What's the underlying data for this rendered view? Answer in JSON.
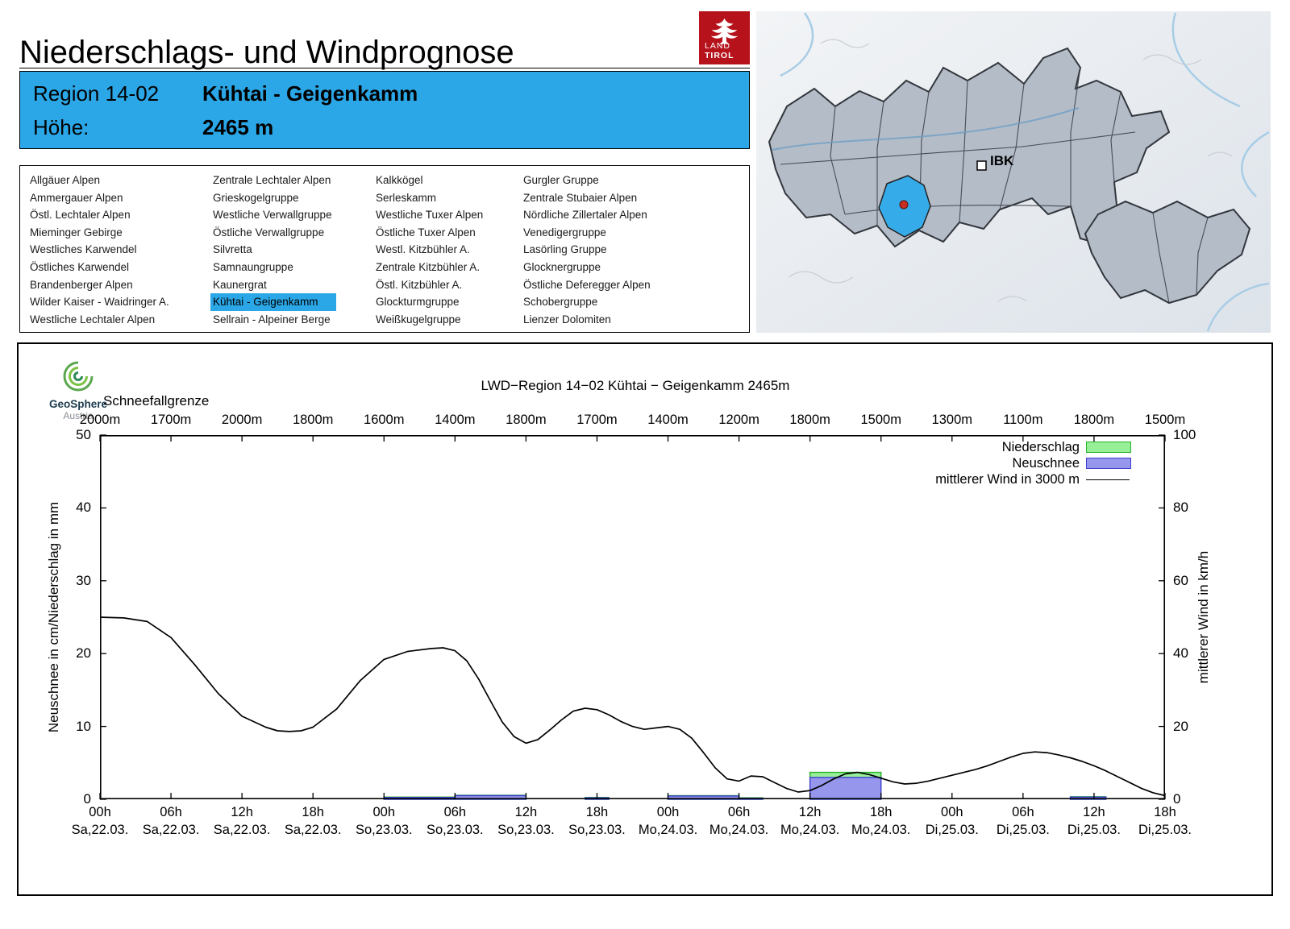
{
  "header": {
    "title": "Niederschlags- und Windprognose",
    "logo": {
      "line1": "LAND",
      "line2": "TIROL"
    }
  },
  "region_info": {
    "region_label": "Region 14-02",
    "region_name": "Kühtai - Geigenkamm",
    "altitude_label": "Höhe:",
    "altitude_value": "2465 m"
  },
  "colors": {
    "accent_blue": "#2BA7E7",
    "tirol_red": "#B5121B",
    "precip_fill": "#97F097",
    "precip_stroke": "#27B027",
    "snow_fill": "#9696EC",
    "snow_stroke": "#4040D0",
    "wind_line": "#000000",
    "map_region_fill": "#B4BCC8",
    "map_highlight": "#35ACE9",
    "map_marker_red": "#C62F22"
  },
  "region_list": {
    "columns": [
      [
        "Allgäuer Alpen",
        "Ammergauer Alpen",
        "Östl. Lechtaler Alpen",
        "Mieminger Gebirge",
        "Westliches Karwendel",
        "Östliches Karwendel",
        "Brandenberger Alpen",
        "Wilder Kaiser - Waidringer A.",
        "Westliche Lechtaler Alpen"
      ],
      [
        "Zentrale Lechtaler Alpen",
        "Grieskogelgruppe",
        "Westliche Verwallgruppe",
        "Östliche Verwallgruppe",
        "Silvretta",
        "Samnaungruppe",
        "Kaunergrat",
        "Kühtai - Geigenkamm",
        "Sellrain - Alpeiner Berge"
      ],
      [
        "Kalkkögel",
        "Serleskamm",
        "Westliche Tuxer Alpen",
        "Östliche Tuxer Alpen",
        "Westl. Kitzbühler A.",
        "Zentrale Kitzbühler A.",
        "Östl. Kitzbühler A.",
        "Glockturmgruppe",
        "Weißkugelgruppe"
      ],
      [
        "Gurgler Gruppe",
        "Zentrale Stubaier Alpen",
        "Nördliche Zillertaler Alpen",
        "Venedigergruppe",
        "Lasörling Gruppe",
        "Glocknergruppe",
        "Östliche Deferegger Alpen",
        "Schobergruppe",
        "Lienzer Dolomiten"
      ]
    ],
    "selected": {
      "col": 1,
      "row": 7
    }
  },
  "map": {
    "city_label": "IBK"
  },
  "geosphere": {
    "name": "GeoSphere",
    "sub": "Austria"
  },
  "chart_data": {
    "type": "bar+line",
    "title": "LWD−Region 14−02 Kühtai − Geigenkamm 2465m",
    "snowline_label": "Schneefallgrenze",
    "snowline_values": [
      "2000m",
      "1700m",
      "2000m",
      "1800m",
      "1600m",
      "1400m",
      "1800m",
      "1700m",
      "1400m",
      "1200m",
      "1800m",
      "1500m",
      "1300m",
      "1100m",
      "1800m",
      "1500m"
    ],
    "x_ticks": [
      {
        "time": "00h",
        "date": "Sa,22.03."
      },
      {
        "time": "06h",
        "date": "Sa,22.03."
      },
      {
        "time": "12h",
        "date": "Sa,22.03."
      },
      {
        "time": "18h",
        "date": "Sa,22.03."
      },
      {
        "time": "00h",
        "date": "So,23.03."
      },
      {
        "time": "06h",
        "date": "So,23.03."
      },
      {
        "time": "12h",
        "date": "So,23.03."
      },
      {
        "time": "18h",
        "date": "So,23.03."
      },
      {
        "time": "00h",
        "date": "Mo,24.03."
      },
      {
        "time": "06h",
        "date": "Mo,24.03."
      },
      {
        "time": "12h",
        "date": "Mo,24.03."
      },
      {
        "time": "18h",
        "date": "Mo,24.03."
      },
      {
        "time": "00h",
        "date": "Di,25.03."
      },
      {
        "time": "06h",
        "date": "Di,25.03."
      },
      {
        "time": "12h",
        "date": "Di,25.03."
      },
      {
        "time": "18h",
        "date": "Di,25.03."
      }
    ],
    "x_range_hours": [
      0,
      90
    ],
    "ylabel_left": "Neuschnee in cm/Niederschlag in mm",
    "ylabel_right": "mittlerer Wind in km/h",
    "ylim_left": [
      0,
      50
    ],
    "ylim_right": [
      0,
      100
    ],
    "y_ticks_left": [
      0,
      10,
      20,
      30,
      40,
      50
    ],
    "y_ticks_right": [
      0,
      20,
      40,
      60,
      80,
      100
    ],
    "legend": [
      {
        "label": "Niederschlag",
        "type": "box"
      },
      {
        "label": "Neuschnee",
        "type": "box"
      },
      {
        "label": "mittlerer Wind in 3000 m",
        "type": "line"
      }
    ],
    "bars": [
      {
        "start_h": 24,
        "end_h": 30,
        "niederschlag_mm": 0.3,
        "neuschnee_cm": 0.25
      },
      {
        "start_h": 30,
        "end_h": 36,
        "niederschlag_mm": 0.55,
        "neuschnee_cm": 0.5
      },
      {
        "start_h": 41,
        "end_h": 43,
        "niederschlag_mm": 0.25,
        "neuschnee_cm": 0.2
      },
      {
        "start_h": 48,
        "end_h": 54,
        "niederschlag_mm": 0.5,
        "neuschnee_cm": 0.45
      },
      {
        "start_h": 54,
        "end_h": 56,
        "niederschlag_mm": 0.2,
        "neuschnee_cm": 0.15
      },
      {
        "start_h": 60,
        "end_h": 66,
        "niederschlag_mm": 3.7,
        "neuschnee_cm": 3.0
      },
      {
        "start_h": 82,
        "end_h": 85,
        "niederschlag_mm": 0.35,
        "neuschnee_cm": 0.3
      }
    ],
    "wind_series": {
      "name": "mittlerer Wind in 3000 m",
      "unit": "km/h",
      "points": [
        [
          0,
          50
        ],
        [
          2,
          49.8
        ],
        [
          4,
          48.8
        ],
        [
          6,
          44.4
        ],
        [
          8,
          37
        ],
        [
          10,
          29
        ],
        [
          12,
          22.8
        ],
        [
          14,
          19.8
        ],
        [
          15,
          18.8
        ],
        [
          16,
          18.6
        ],
        [
          17,
          18.8
        ],
        [
          18,
          19.8
        ],
        [
          20,
          24.8
        ],
        [
          22,
          32.6
        ],
        [
          24,
          38.4
        ],
        [
          26,
          40.6
        ],
        [
          28,
          41.4
        ],
        [
          29,
          41.6
        ],
        [
          30,
          40.8
        ],
        [
          31,
          38
        ],
        [
          32,
          33
        ],
        [
          33,
          27
        ],
        [
          34,
          21.2
        ],
        [
          35,
          17.2
        ],
        [
          36,
          15.4
        ],
        [
          37,
          16.4
        ],
        [
          38,
          19
        ],
        [
          39,
          21.8
        ],
        [
          40,
          24.2
        ],
        [
          41,
          25
        ],
        [
          42,
          24.6
        ],
        [
          43,
          23.2
        ],
        [
          44,
          21.4
        ],
        [
          45,
          20
        ],
        [
          46,
          19.2
        ],
        [
          47,
          19.6
        ],
        [
          48,
          20
        ],
        [
          49,
          19.2
        ],
        [
          50,
          16.8
        ],
        [
          51,
          12.8
        ],
        [
          52,
          8.6
        ],
        [
          53,
          5.6
        ],
        [
          54,
          5
        ],
        [
          55,
          6.4
        ],
        [
          56,
          6.2
        ],
        [
          57,
          4.6
        ],
        [
          58,
          3
        ],
        [
          59,
          2
        ],
        [
          60,
          2.4
        ],
        [
          61,
          3.8
        ],
        [
          62,
          5.6
        ],
        [
          63,
          7
        ],
        [
          64,
          7.4
        ],
        [
          65,
          6.8
        ],
        [
          66,
          5.8
        ],
        [
          67,
          4.8
        ],
        [
          68,
          4.2
        ],
        [
          69,
          4.4
        ],
        [
          70,
          5
        ],
        [
          71,
          5.8
        ],
        [
          72,
          6.6
        ],
        [
          73,
          7.4
        ],
        [
          74,
          8.2
        ],
        [
          75,
          9.2
        ],
        [
          76,
          10.4
        ],
        [
          77,
          11.6
        ],
        [
          78,
          12.6
        ],
        [
          79,
          13
        ],
        [
          80,
          12.8
        ],
        [
          81,
          12.2
        ],
        [
          82,
          11.4
        ],
        [
          83,
          10.4
        ],
        [
          84,
          9.2
        ],
        [
          85,
          7.8
        ],
        [
          86,
          6.2
        ],
        [
          87,
          4.6
        ],
        [
          88,
          3
        ],
        [
          89,
          1.8
        ],
        [
          90,
          1
        ]
      ]
    }
  }
}
